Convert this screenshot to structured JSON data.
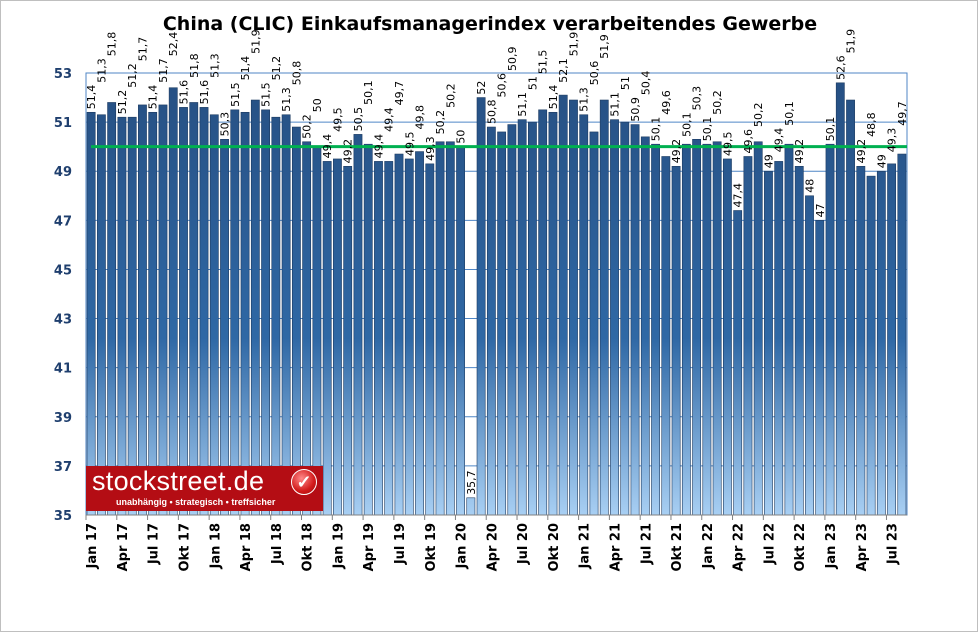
{
  "chart_data": {
    "type": "bar",
    "title": "China (CLIC) Einkaufsmanagerindex verarbeitendes Gewerbe",
    "xlabel": "",
    "ylabel": "",
    "ylim": [
      35,
      53
    ],
    "yticks": [
      35,
      37,
      39,
      41,
      43,
      45,
      47,
      49,
      51,
      53
    ],
    "grid": true,
    "reference_line": 50,
    "x_tick_labels": [
      "Jan 17",
      "Apr 17",
      "Jul 17",
      "Okt 17",
      "Jan 18",
      "Apr 18",
      "Jul 18",
      "Okt 18",
      "Jan 19",
      "Apr 19",
      "Jul 19",
      "Okt 19",
      "Jan 20",
      "Apr 20",
      "Jul 20",
      "Okt 20",
      "Jan 21",
      "Apr 21",
      "Jul 21",
      "Okt 21",
      "Jan 22",
      "Apr 22",
      "Jul 22",
      "Okt 22",
      "Jan 23",
      "Apr 23",
      "Jul 23"
    ],
    "values": [
      51.4,
      51.3,
      51.8,
      51.2,
      51.2,
      51.7,
      51.4,
      51.7,
      52.4,
      51.6,
      51.8,
      51.6,
      51.3,
      50.3,
      51.5,
      51.4,
      51.9,
      51.5,
      51.2,
      51.3,
      50.8,
      50.2,
      50.0,
      49.4,
      49.5,
      49.2,
      50.5,
      50.1,
      49.4,
      49.4,
      49.7,
      49.5,
      49.8,
      49.3,
      50.2,
      50.2,
      50.0,
      35.7,
      52.0,
      50.8,
      50.6,
      50.9,
      51.1,
      51.0,
      51.5,
      51.4,
      52.1,
      51.9,
      51.3,
      50.6,
      51.9,
      51.1,
      51.0,
      50.9,
      50.4,
      50.1,
      49.6,
      49.2,
      50.1,
      50.3,
      50.1,
      50.2,
      49.5,
      47.4,
      49.6,
      50.2,
      49.0,
      49.4,
      50.1,
      49.2,
      48.0,
      47.0,
      50.1,
      52.6,
      51.9,
      49.2,
      48.8,
      49.0,
      49.3,
      49.7
    ],
    "colors": {
      "bar_top": "#264f82",
      "bar_mid": "#2f68a5",
      "bar_bottom": "#a8cff3",
      "grid": "#4f86c6",
      "reference": "#00b050"
    }
  },
  "logo": {
    "brand": "stockstreet.de",
    "tagline": "unabhängig • strategisch • treffsicher"
  }
}
